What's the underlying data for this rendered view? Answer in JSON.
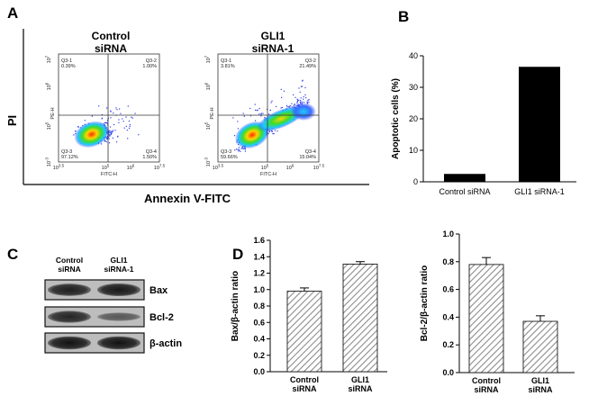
{
  "panels": {
    "a": "A",
    "b": "B",
    "c": "C",
    "d": "D"
  },
  "colors": {
    "bar_black": "#000000",
    "hatch": "#8c8c8c",
    "blot_dark": "#1e1e1e",
    "blot_bg": "#bdbdbd"
  },
  "panel_a": {
    "y_title": "PI",
    "x_title": "Annexin V-FITC",
    "flow_plots": [
      {
        "title_line1": "Control",
        "title_line2": "siRNA",
        "x_axis_label": "FITC-H",
        "y_axis_label": "PE-H",
        "x_ticks": [
          "10",
          "10",
          "10",
          "10"
        ],
        "x_tick_exps": [
          "3.5",
          "5",
          "6",
          "7.5"
        ],
        "y_ticks": [
          "10",
          "10",
          "10",
          "10"
        ],
        "y_tick_exps": [
          "7",
          "6",
          "5",
          "-3"
        ],
        "quadrants": [
          {
            "name": "Q3-1",
            "value": "0.39%"
          },
          {
            "name": "Q3-2",
            "value": "1.00%"
          },
          {
            "name": "Q3-3",
            "value": "97.12%"
          },
          {
            "name": "Q3-4",
            "value": "1.50%"
          }
        ]
      },
      {
        "title_line1": "GLI1",
        "title_line2": "siRNA-1",
        "x_axis_label": "FITC-H",
        "y_axis_label": "PE-H",
        "x_ticks": [
          "10",
          "10",
          "10",
          "10"
        ],
        "x_tick_exps": [
          "3.5",
          "5",
          "6",
          "7.5"
        ],
        "y_ticks": [
          "10",
          "10",
          "10",
          "10"
        ],
        "y_tick_exps": [
          "7",
          "6",
          "5",
          "-3"
        ],
        "quadrants": [
          {
            "name": "Q3-1",
            "value": "3.81%"
          },
          {
            "name": "Q3-2",
            "value": "21.49%"
          },
          {
            "name": "Q3-3",
            "value": "59.66%"
          },
          {
            "name": "Q3-4",
            "value": "15.04%"
          }
        ]
      }
    ]
  },
  "panel_c": {
    "lanes": [
      {
        "line1": "Control",
        "line2": "siRNA"
      },
      {
        "line1": "GLI1",
        "line2": "siRNA-1"
      }
    ],
    "bands": [
      {
        "label": "Bax",
        "intensity": [
          0.85,
          0.9
        ]
      },
      {
        "label": "Bcl-2",
        "intensity": [
          0.8,
          0.35
        ]
      },
      {
        "label": "β-actin",
        "intensity": [
          0.95,
          0.95
        ]
      }
    ]
  },
  "chart_data": [
    {
      "id": "B",
      "type": "bar",
      "title": "",
      "xlabel": "",
      "ylabel": "Apoptotic cells (%)",
      "categories": [
        "Control siRNA",
        "GLI1 siRNA-1"
      ],
      "values": [
        2.5,
        36.5
      ],
      "ylim": [
        0,
        40
      ],
      "yticks": [
        0,
        10,
        20,
        30,
        40
      ],
      "ytick_labels": [
        "0",
        "10",
        "20",
        "30",
        "40"
      ],
      "fill": "solid",
      "grid": false
    },
    {
      "id": "D1",
      "type": "bar",
      "title": "",
      "xlabel": "",
      "ylabel": "Bax/β-actin ratio",
      "categories": [
        "Control siRNA",
        "GLI1 siRNA"
      ],
      "category_lines": [
        [
          "Control",
          "siRNA"
        ],
        [
          "GLI1",
          "siRNA"
        ]
      ],
      "values": [
        0.98,
        1.31
      ],
      "errors": [
        0.04,
        0.03
      ],
      "ylim": [
        0,
        1.6
      ],
      "yticks": [
        0,
        0.2,
        0.4,
        0.6,
        0.8,
        1.0,
        1.2,
        1.4,
        1.6
      ],
      "ytick_labels": [
        "0.0",
        "0.2",
        "0.4",
        "0.6",
        "0.8",
        "1.0",
        "1.2",
        "1.4",
        "1.6"
      ],
      "fill": "hatched",
      "grid": false
    },
    {
      "id": "D2",
      "type": "bar",
      "title": "",
      "xlabel": "",
      "ylabel": "Bcl-2/β-actin ratio",
      "categories": [
        "Control siRNA",
        "GLI1 siRNA"
      ],
      "category_lines": [
        [
          "Control",
          "siRNA"
        ],
        [
          "GLI1",
          "siRNA"
        ]
      ],
      "values": [
        0.78,
        0.37
      ],
      "errors": [
        0.05,
        0.04
      ],
      "ylim": [
        0,
        1.0
      ],
      "yticks": [
        0,
        0.2,
        0.4,
        0.6,
        0.8,
        1.0
      ],
      "ytick_labels": [
        "0.0",
        "0.2",
        "0.4",
        "0.6",
        "0.8",
        "1.0"
      ],
      "fill": "hatched",
      "grid": false
    }
  ]
}
